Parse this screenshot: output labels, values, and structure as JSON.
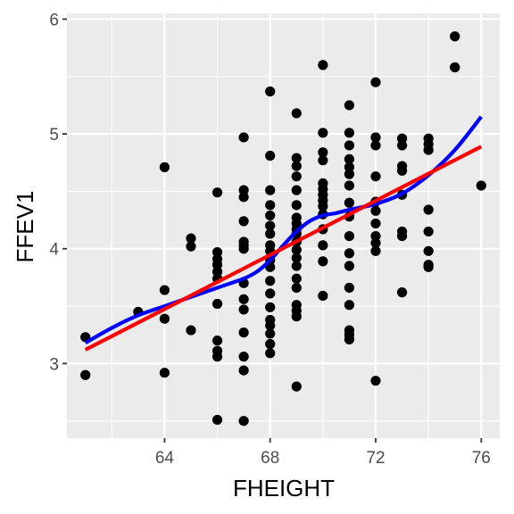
{
  "chart_data": {
    "type": "scatter",
    "title": "",
    "xlabel": "FHEIGHT",
    "ylabel": "FFEV1",
    "xlim": [
      60.3,
      76.7
    ],
    "ylim": [
      2.35,
      6.05
    ],
    "xticks": [
      64,
      68,
      72,
      76
    ],
    "yticks": [
      3,
      4,
      5,
      6
    ],
    "grid": true,
    "legend": "none",
    "points": [
      [
        61,
        3.23
      ],
      [
        61,
        2.9
      ],
      [
        63,
        3.45
      ],
      [
        64,
        4.71
      ],
      [
        64,
        3.64
      ],
      [
        64,
        3.39
      ],
      [
        64,
        2.92
      ],
      [
        65,
        4.09
      ],
      [
        65,
        4.02
      ],
      [
        65,
        3.29
      ],
      [
        66,
        4.49
      ],
      [
        66,
        3.97
      ],
      [
        66,
        3.91
      ],
      [
        66,
        3.86
      ],
      [
        66,
        3.8
      ],
      [
        66,
        3.74
      ],
      [
        66,
        3.52
      ],
      [
        66,
        3.2
      ],
      [
        66,
        3.11
      ],
      [
        66,
        3.06
      ],
      [
        66,
        2.51
      ],
      [
        67,
        4.97
      ],
      [
        67,
        4.51
      ],
      [
        67,
        4.45
      ],
      [
        67,
        4.24
      ],
      [
        67,
        4.06
      ],
      [
        67,
        4.03
      ],
      [
        67,
        4.0
      ],
      [
        67,
        3.7
      ],
      [
        67,
        3.56
      ],
      [
        67,
        3.47
      ],
      [
        67,
        3.27
      ],
      [
        67,
        3.06
      ],
      [
        67,
        2.94
      ],
      [
        67,
        2.5
      ],
      [
        68,
        5.37
      ],
      [
        68,
        4.81
      ],
      [
        68,
        4.51
      ],
      [
        68,
        4.38
      ],
      [
        68,
        4.29
      ],
      [
        68,
        4.2
      ],
      [
        68,
        4.13
      ],
      [
        68,
        4.03
      ],
      [
        68,
        3.98
      ],
      [
        68,
        3.9
      ],
      [
        68,
        3.84
      ],
      [
        68,
        3.72
      ],
      [
        68,
        3.61
      ],
      [
        68,
        3.49
      ],
      [
        68,
        3.38
      ],
      [
        68,
        3.33
      ],
      [
        68,
        3.26
      ],
      [
        68,
        3.17
      ],
      [
        68,
        3.09
      ],
      [
        69,
        5.18
      ],
      [
        69,
        4.79
      ],
      [
        69,
        4.72
      ],
      [
        69,
        4.63
      ],
      [
        69,
        4.51
      ],
      [
        69,
        4.38
      ],
      [
        69,
        4.27
      ],
      [
        69,
        4.22
      ],
      [
        69,
        4.17
      ],
      [
        69,
        4.13
      ],
      [
        69,
        4.06
      ],
      [
        69,
        3.99
      ],
      [
        69,
        3.92
      ],
      [
        69,
        3.85
      ],
      [
        69,
        3.74
      ],
      [
        69,
        3.66
      ],
      [
        69,
        3.51
      ],
      [
        69,
        3.46
      ],
      [
        69,
        3.41
      ],
      [
        69,
        2.8
      ],
      [
        70,
        5.6
      ],
      [
        70,
        5.01
      ],
      [
        70,
        4.84
      ],
      [
        70,
        4.77
      ],
      [
        70,
        4.57
      ],
      [
        70,
        4.52
      ],
      [
        70,
        4.47
      ],
      [
        70,
        4.42
      ],
      [
        70,
        4.37
      ],
      [
        70,
        4.3
      ],
      [
        70,
        4.17
      ],
      [
        70,
        4.03
      ],
      [
        70,
        3.89
      ],
      [
        70,
        3.59
      ],
      [
        71,
        5.25
      ],
      [
        71,
        5.01
      ],
      [
        71,
        4.9
      ],
      [
        71,
        4.78
      ],
      [
        71,
        4.71
      ],
      [
        71,
        4.65
      ],
      [
        71,
        4.55
      ],
      [
        71,
        4.4
      ],
      [
        71,
        4.28
      ],
      [
        71,
        4.11
      ],
      [
        71,
        3.96
      ],
      [
        71,
        3.85
      ],
      [
        71,
        3.66
      ],
      [
        71,
        3.51
      ],
      [
        71,
        3.29
      ],
      [
        71,
        3.25
      ],
      [
        71,
        3.21
      ],
      [
        72,
        5.45
      ],
      [
        72,
        4.97
      ],
      [
        72,
        4.9
      ],
      [
        72,
        4.63
      ],
      [
        72,
        4.41
      ],
      [
        72,
        4.33
      ],
      [
        72,
        4.22
      ],
      [
        72,
        4.11
      ],
      [
        72,
        4.05
      ],
      [
        72,
        3.98
      ],
      [
        72,
        2.85
      ],
      [
        73,
        4.96
      ],
      [
        73,
        4.9
      ],
      [
        73,
        4.72
      ],
      [
        73,
        4.68
      ],
      [
        73,
        4.47
      ],
      [
        73,
        4.15
      ],
      [
        73,
        4.11
      ],
      [
        73,
        3.62
      ],
      [
        74,
        4.96
      ],
      [
        74,
        4.91
      ],
      [
        74,
        4.86
      ],
      [
        74,
        4.34
      ],
      [
        74,
        4.15
      ],
      [
        74,
        3.98
      ],
      [
        74,
        3.86
      ],
      [
        74,
        3.84
      ],
      [
        75,
        5.85
      ],
      [
        75,
        5.58
      ],
      [
        75,
        5.58
      ],
      [
        76,
        4.55
      ]
    ],
    "series": [
      {
        "name": "smooth",
        "color": "#0000ff",
        "x": [
          61,
          62,
          63,
          64,
          65,
          66,
          67,
          67.5,
          68,
          68.5,
          69,
          69.5,
          70,
          70.5,
          71,
          72,
          73,
          74,
          75,
          76
        ],
        "y": [
          3.18,
          3.31,
          3.42,
          3.5,
          3.58,
          3.66,
          3.74,
          3.8,
          3.9,
          4.03,
          4.15,
          4.24,
          4.29,
          4.31,
          4.34,
          4.39,
          4.48,
          4.64,
          4.86,
          5.15
        ]
      },
      {
        "name": "linear fit",
        "color": "#ff0000",
        "x": [
          61,
          76
        ],
        "y": [
          3.12,
          4.89
        ]
      }
    ]
  }
}
